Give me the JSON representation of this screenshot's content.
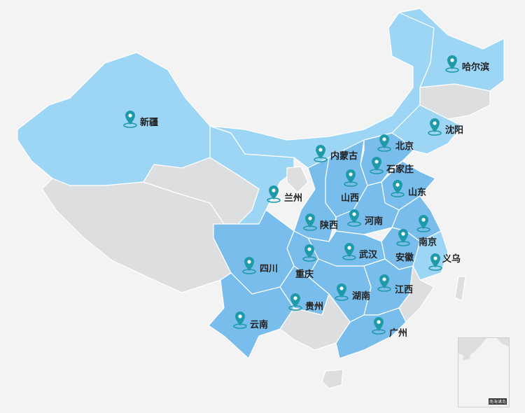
{
  "colors": {
    "background": "#f3f3f3",
    "light_region": "#9dd5f5",
    "highlight_region": "#78bdec",
    "inactive_region": "#dcdee0",
    "marker": "#1f9aa8"
  },
  "markers": [
    {
      "name": "哈尔滨",
      "icon": "map-pin-icon"
    },
    {
      "name": "新疆",
      "icon": "map-pin-icon"
    },
    {
      "name": "沈阳",
      "icon": "map-pin-icon"
    },
    {
      "name": "内蒙古",
      "icon": "map-pin-icon"
    },
    {
      "name": "北京",
      "icon": "map-pin-icon"
    },
    {
      "name": "石家庄",
      "icon": "map-pin-icon"
    },
    {
      "name": "山西",
      "icon": "map-pin-icon"
    },
    {
      "name": "山东",
      "icon": "map-pin-icon"
    },
    {
      "name": "兰州",
      "icon": "map-pin-icon"
    },
    {
      "name": "陕西",
      "icon": "map-pin-icon"
    },
    {
      "name": "河南",
      "icon": "map-pin-icon"
    },
    {
      "name": "南京",
      "icon": "map-pin-icon"
    },
    {
      "name": "安徽",
      "icon": "map-pin-icon"
    },
    {
      "name": "武汉",
      "icon": "map-pin-icon"
    },
    {
      "name": "重庆",
      "icon": "map-pin-icon"
    },
    {
      "name": "四川",
      "icon": "map-pin-icon"
    },
    {
      "name": "义乌",
      "icon": "map-pin-icon"
    },
    {
      "name": "江西",
      "icon": "map-pin-icon"
    },
    {
      "name": "湖南",
      "icon": "map-pin-icon"
    },
    {
      "name": "贵州",
      "icon": "map-pin-icon"
    },
    {
      "name": "云南",
      "icon": "map-pin-icon"
    },
    {
      "name": "广州",
      "icon": "map-pin-icon"
    }
  ],
  "inset": {
    "label": "南海诸岛"
  }
}
